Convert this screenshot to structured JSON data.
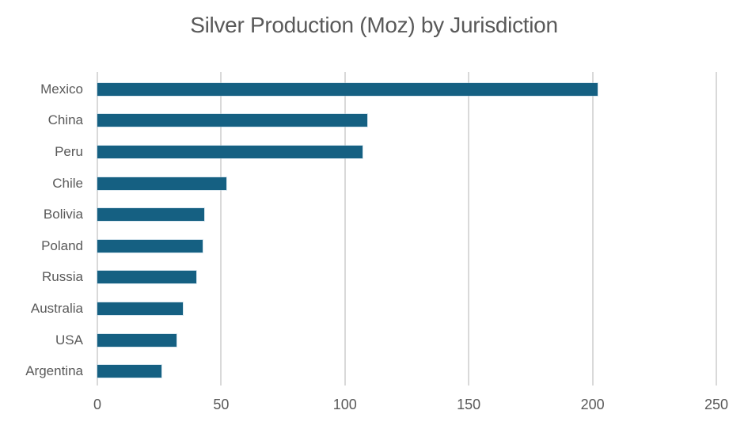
{
  "title": "Silver Production (Moz) by Jurisdiction",
  "colors": {
    "bar": "#156082",
    "gridline": "#D9D9D9",
    "text": "#595959",
    "background": "#FFFFFF"
  },
  "chart_data": {
    "type": "bar",
    "orientation": "horizontal",
    "title": "Silver Production (Moz) by Jurisdiction",
    "categories": [
      "Mexico",
      "China",
      "Peru",
      "Chile",
      "Bolivia",
      "Poland",
      "Russia",
      "Australia",
      "USA",
      "Argentina"
    ],
    "values": [
      202,
      109,
      107,
      52,
      43,
      42.5,
      40,
      34.5,
      32,
      26
    ],
    "xlabel": "",
    "ylabel": "",
    "xlim": [
      0,
      250
    ],
    "xticks": [
      0,
      50,
      100,
      150,
      200,
      250
    ],
    "grid": true,
    "legend": false
  }
}
